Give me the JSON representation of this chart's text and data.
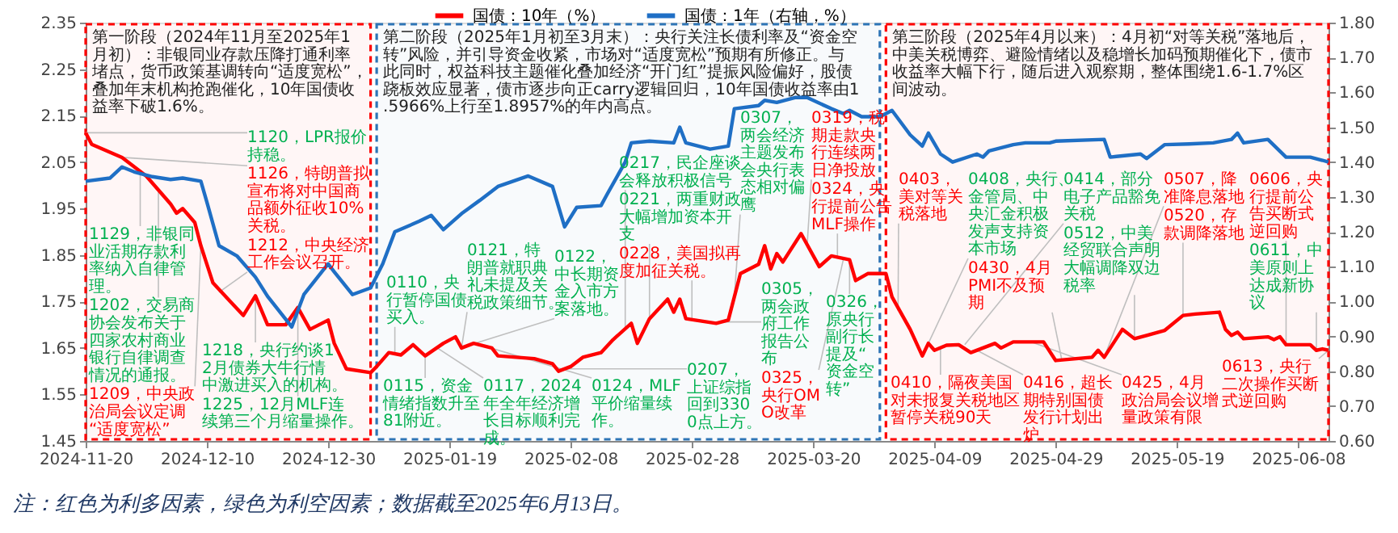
{
  "chart_data": {
    "type": "line",
    "xlim": [
      "2024-11-20",
      "2025-06-13"
    ],
    "xticks": [
      "2024-11-20",
      "2024-12-10",
      "2024-12-30",
      "2025-01-19",
      "2025-02-08",
      "2025-02-28",
      "2025-03-20",
      "2025-04-09",
      "2025-04-29",
      "2025-05-19",
      "2025-06-08"
    ],
    "ylim": [
      1.45,
      2.35
    ],
    "yticks": [
      1.45,
      1.55,
      1.65,
      1.75,
      1.85,
      1.95,
      2.05,
      2.15,
      2.25,
      2.35
    ],
    "y2lim": [
      0.6,
      1.8
    ],
    "y2ticks": [
      {
        "value": 0.6,
        "label": "0.60"
      },
      {
        "value": 0.7,
        "label": "0.70"
      },
      {
        "value": 0.8,
        "label": "0.80"
      },
      {
        "value": 0.9,
        "label": "0.90"
      },
      {
        "value": 1.0,
        "label": "1.00"
      },
      {
        "value": 1.1,
        "label": "1.10"
      },
      {
        "value": 1.2,
        "label": "1.20"
      },
      {
        "value": 1.3,
        "label": "1.30"
      },
      {
        "value": 1.4,
        "label": "1.40"
      },
      {
        "value": 1.5,
        "label": "1.50"
      },
      {
        "value": 1.6,
        "label": "1.60"
      },
      {
        "value": 1.7,
        "label": "1.70"
      },
      {
        "value": 1.8,
        "label": "1.80"
      }
    ],
    "legend": "top",
    "series": [
      {
        "name": "国债：10年（%）",
        "color": "#ff0000",
        "axis": "y",
        "x": [
          "2024-11-20",
          "2024-11-21",
          "2024-11-26",
          "2024-11-27",
          "2024-11-30",
          "2024-12-02",
          "2024-12-04",
          "2024-12-05",
          "2024-12-06",
          "2024-12-08",
          "2024-12-09",
          "2024-12-11",
          "2024-12-14",
          "2024-12-16",
          "2024-12-18",
          "2024-12-20",
          "2024-12-23",
          "2024-12-25",
          "2024-12-27",
          "2024-12-30",
          "2024-12-31",
          "2025-01-02",
          "2025-01-06",
          "2025-01-07",
          "2025-01-09",
          "2025-01-11",
          "2025-01-13",
          "2025-01-15",
          "2025-01-18",
          "2025-01-20",
          "2025-01-21",
          "2025-01-23",
          "2025-01-26",
          "2025-01-27",
          "2025-02-02",
          "2025-02-05",
          "2025-02-06",
          "2025-02-08",
          "2025-02-10",
          "2025-02-13",
          "2025-02-15",
          "2025-02-18",
          "2025-02-19",
          "2025-02-21",
          "2025-02-24",
          "2025-02-25",
          "2025-02-26",
          "2025-02-27",
          "2025-03-04",
          "2025-03-06",
          "2025-03-08",
          "2025-03-11",
          "2025-03-12",
          "2025-03-13",
          "2025-03-14",
          "2025-03-15",
          "2025-03-18",
          "2025-03-21",
          "2025-03-23",
          "2025-03-26",
          "2025-03-27",
          "2025-03-29",
          "2025-04-01",
          "2025-04-02",
          "2025-04-05",
          "2025-04-07",
          "2025-04-08",
          "2025-04-09",
          "2025-04-11",
          "2025-04-13",
          "2025-04-15",
          "2025-04-19",
          "2025-04-20",
          "2025-04-22",
          "2025-04-27",
          "2025-04-29",
          "2025-05-05",
          "2025-05-06",
          "2025-05-07",
          "2025-05-10",
          "2025-05-12",
          "2025-05-14",
          "2025-05-17",
          "2025-05-20",
          "2025-05-22",
          "2025-05-26",
          "2025-05-27",
          "2025-05-28",
          "2025-05-29",
          "2025-05-30",
          "2025-06-03",
          "2025-06-04",
          "2025-06-05",
          "2025-06-06",
          "2025-06-10",
          "2025-06-11",
          "2025-06-12",
          "2025-06-13"
        ],
        "values": [
          2.113,
          2.088,
          2.06,
          2.05,
          2.02,
          1.99,
          1.96,
          1.94,
          1.95,
          1.92,
          1.87,
          1.79,
          1.748,
          1.72,
          1.762,
          1.7,
          1.7,
          1.737,
          1.69,
          1.71,
          1.66,
          1.605,
          1.597,
          1.61,
          1.64,
          1.635,
          1.657,
          1.633,
          1.66,
          1.674,
          1.65,
          1.66,
          1.65,
          1.633,
          1.627,
          1.616,
          1.6,
          1.61,
          1.63,
          1.64,
          1.668,
          1.703,
          1.66,
          1.713,
          1.755,
          1.727,
          1.755,
          1.713,
          1.703,
          1.71,
          1.81,
          1.83,
          1.87,
          1.82,
          1.853,
          1.835,
          1.896,
          1.825,
          1.848,
          1.84,
          1.795,
          1.81,
          1.81,
          1.76,
          1.69,
          1.633,
          1.66,
          1.645,
          1.656,
          1.657,
          1.64,
          1.66,
          1.65,
          1.663,
          1.663,
          1.623,
          1.63,
          1.645,
          1.63,
          1.69,
          1.67,
          1.677,
          1.688,
          1.72,
          1.723,
          1.727,
          1.69,
          1.677,
          1.684,
          1.67,
          1.674,
          1.668,
          1.674,
          1.657,
          1.657,
          1.645,
          1.648,
          1.645
        ]
      },
      {
        "name": "国债：1年（右轴，%）",
        "color": "#1f6fc5",
        "axis": "y2",
        "x": [
          "2024-11-20",
          "2024-11-24",
          "2024-11-26",
          "2024-11-28",
          "2024-12-01",
          "2024-12-04",
          "2024-12-06",
          "2024-12-09",
          "2024-12-10",
          "2024-12-12",
          "2024-12-15",
          "2024-12-18",
          "2024-12-20",
          "2024-12-24",
          "2024-12-26",
          "2024-12-30",
          "2024-12-31",
          "2025-01-03",
          "2025-01-06",
          "2025-01-08",
          "2025-01-10",
          "2025-01-14",
          "2025-01-16",
          "2025-01-18",
          "2025-01-21",
          "2025-01-24",
          "2025-01-27",
          "2025-02-01",
          "2025-02-05",
          "2025-02-07",
          "2025-02-09",
          "2025-02-13",
          "2025-02-14",
          "2025-02-17",
          "2025-02-18",
          "2025-02-21",
          "2025-02-25",
          "2025-02-26",
          "2025-02-27",
          "2025-03-03",
          "2025-03-06",
          "2025-03-07",
          "2025-03-11",
          "2025-03-12",
          "2025-03-14",
          "2025-03-17",
          "2025-03-19",
          "2025-03-23",
          "2025-03-25",
          "2025-03-26",
          "2025-03-28",
          "2025-03-31",
          "2025-04-02",
          "2025-04-05",
          "2025-04-07",
          "2025-04-08",
          "2025-04-10",
          "2025-04-12",
          "2025-04-16",
          "2025-04-17",
          "2025-04-18",
          "2025-04-22",
          "2025-04-24",
          "2025-04-28",
          "2025-04-29",
          "2025-05-07",
          "2025-05-08",
          "2025-05-09",
          "2025-05-13",
          "2025-05-14",
          "2025-05-17",
          "2025-05-21",
          "2025-05-25",
          "2025-05-28",
          "2025-05-29",
          "2025-05-30",
          "2025-06-03",
          "2025-06-06",
          "2025-06-10",
          "2025-06-12",
          "2025-06-13"
        ],
        "values": [
          1.345,
          1.354,
          1.386,
          1.372,
          1.358,
          1.35,
          1.354,
          1.345,
          1.285,
          1.16,
          1.13,
          1.07,
          1.015,
          0.927,
          1.02,
          1.108,
          1.085,
          1.02,
          1.039,
          1.108,
          1.2,
          1.23,
          1.247,
          1.206,
          1.252,
          1.29,
          1.33,
          1.36,
          1.33,
          1.214,
          1.27,
          1.275,
          1.307,
          1.4,
          1.455,
          1.46,
          1.455,
          1.5,
          1.455,
          1.437,
          1.446,
          1.553,
          1.562,
          1.577,
          1.571,
          1.585,
          1.585,
          1.553,
          1.539,
          1.548,
          1.53,
          1.53,
          1.548,
          1.478,
          1.446,
          1.483,
          1.423,
          1.4,
          1.423,
          1.414,
          1.432,
          1.45,
          1.455,
          1.455,
          1.46,
          1.465,
          1.414,
          1.416,
          1.423,
          1.41,
          1.45,
          1.452,
          1.455,
          1.465,
          1.483,
          1.455,
          1.465,
          1.414,
          1.414,
          1.405,
          1.4
        ]
      }
    ],
    "bands": [
      {
        "axis": "x",
        "from": "2024-11-20",
        "to": "2025-01-06",
        "color": "#ff0000",
        "label": "第一阶段（2024年11月至2025年1月初）：非银同业存款压降打通利率堵点，货币政策基调转向“适度宽松”，叠加年末机构抢跑催化，10年国债收益率下破1.6%。"
      },
      {
        "axis": "x",
        "from": "2025-01-07",
        "to": "2025-03-31",
        "color": "#2e75b6",
        "label": "第二阶段（2025年1月初至3月末）：央行关注长债利率及“资金空转”风险，并引导资金收紧，市场对“适度宽松”预期有所修正。与此同时，权益科技主题催化叠加经济“开门红”提振风险偏好，股债跷板效应显著，债市逐步向正carry逻辑回归，10年国债收益率由1.5966%上行至1.8957%的年内高点。"
      },
      {
        "axis": "x",
        "from": "2025-04-01",
        "to": "2025-06-13",
        "color": "#ff0000",
        "label": "第三阶段（2025年4月以来）：4月初“对等关税”落地后，中美关税博弈、避险情绪以及稳增长加码预期催化下，债市收益率大幅下行，随后进入观察期，整体围绕1.6-1.7%区间波动。"
      }
    ],
    "annotations": [
      {
        "text": "1120，LPR报价持稳。",
        "x": "2024-11-20",
        "y": 2.113
      },
      {
        "text": "1126，特朗普拟宣布将对中国商品额外征收10%关税。",
        "x": "2024-11-26",
        "y": 2.06
      },
      {
        "text": "1129，非银同业活期存款利率纳入自律管理。",
        "x": "2024-11-29",
        "y": 2.03
      },
      {
        "text": "1202，交易商协会发布关于四家农村商业银行自律调查情况的通报。",
        "x": "2024-12-02",
        "y": 1.99
      },
      {
        "text": "1209，中央政治局会议定调“适度宽松”",
        "x": "2024-12-09",
        "y": 1.87
      },
      {
        "text": "1212，中央经济工作会议召开。",
        "x": "2024-12-12",
        "y": 1.77
      },
      {
        "text": "1225，12月MLF连续第三个月缩量操作。",
        "x": "2024-12-25",
        "y": 1.737
      },
      {
        "text": "1218，央行约谈12月债券大牛行情中激进买入的机构。",
        "x": "2024-12-18",
        "y": 1.762
      },
      {
        "text": "0110，央行暂停国债买入。",
        "x": "2025-01-10",
        "y": 1.64
      },
      {
        "text": "0115，资金情绪指数升至81附近。",
        "x": "2025-01-15",
        "y": 1.633
      },
      {
        "text": "0117，2024年全年经济增长目标顺利完成。",
        "x": "2025-01-17",
        "y": 1.65
      },
      {
        "text": "0121，特朗普就职典礼未提及关税政策细节。",
        "x": "2025-01-21",
        "y": 1.65
      },
      {
        "text": "0122，中长期资金入市方案落地。",
        "x": "2025-01-22",
        "y": 1.655
      },
      {
        "text": "0124，MLF平价缩量续作。",
        "x": "2025-01-24",
        "y": 1.657
      },
      {
        "text": "0207，上证综指回到3300点上方。",
        "x": "2025-02-07",
        "y": 1.605
      },
      {
        "text": "0217，民企座谈会释放积极信号",
        "x": "2025-02-17",
        "y": 1.69
      },
      {
        "text": "0221，两重财政大幅增加资本开支",
        "x": "2025-02-21",
        "y": 1.713
      },
      {
        "text": "0228，美国拟再度加征关税。",
        "x": "2025-02-28",
        "y": 1.71
      },
      {
        "text": "0305，两会政府工作报告公布",
        "x": "2025-03-05",
        "y": 1.706
      },
      {
        "text": "0307，两会经济主题发布会央行表态相对偏鹰",
        "x": "2025-03-07",
        "y": 1.76
      },
      {
        "text": "0319，税期走款央行连续两日净投放",
        "x": "2025-03-19",
        "y": 1.87
      },
      {
        "text": "0324，央行提前公告MLF操作",
        "x": "2025-03-24",
        "y": 1.845
      },
      {
        "text": "0325，央行OMO改革",
        "x": "2025-03-25",
        "y": 1.842
      },
      {
        "text": "0326，原央行副行长提及“资金空转”",
        "x": "2025-03-26",
        "y": 1.84
      },
      {
        "text": "0403，美对等关税落地",
        "x": "2025-04-03",
        "y": 1.73
      },
      {
        "text": "0408，央行、金管局、中央汇金积极发声支持资本市场",
        "x": "2025-04-08",
        "y": 1.66
      },
      {
        "text": "0410，隔夜美国对未报复关税地区暂停关税90天",
        "x": "2025-04-10",
        "y": 1.65
      },
      {
        "text": "0414，部分电子产品豁免关税",
        "x": "2025-04-14",
        "y": 1.657
      },
      {
        "text": "0416，超长期特别国债发行计划出炉",
        "x": "2025-04-16",
        "y": 1.645
      },
      {
        "text": "0425，4月政治局会议增量政策有限",
        "x": "2025-04-25",
        "y": 1.663
      },
      {
        "text": "0430，4月PMI不及预期",
        "x": "2025-04-30",
        "y": 1.625
      },
      {
        "text": "0507，降准降息落地",
        "x": "2025-05-07",
        "y": 1.63
      },
      {
        "text": "0512，中美经贸联合声明大幅调降双边税率",
        "x": "2025-05-12",
        "y": 1.67
      },
      {
        "text": "0520，存款调降落地",
        "x": "2025-05-20",
        "y": 1.72
      },
      {
        "text": "0606，央行提前公告买断式逆回购",
        "x": "2025-06-06",
        "y": 1.657
      },
      {
        "text": "0611，中美原则上达成新协议",
        "x": "2025-06-11",
        "y": 1.645
      },
      {
        "text": "0613，央行二次操作买断式逆回购",
        "x": "2025-06-13",
        "y": 1.645
      },
      "注：红色为利多因素，绿色为利空因素；数据截至2025年6月13日。"
    ]
  }
}
